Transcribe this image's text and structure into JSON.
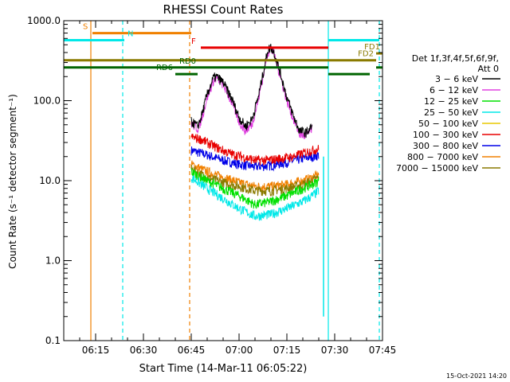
{
  "chart_data": {
    "type": "line",
    "title": "RHESSI Count Rates",
    "xlabel": "Start Time (14-Mar-11 06:05:22)",
    "ylabel": "Count Rate (s⁻¹ detector segment⁻¹)",
    "ylog": true,
    "ylim": [
      0.1,
      1000
    ],
    "xlim_minutes_after_0605": [
      0,
      100
    ],
    "x_tick_labels": [
      "06:15",
      "06:30",
      "06:45",
      "07:00",
      "07:15",
      "07:30",
      "07:45"
    ],
    "x_tick_minutes": [
      10,
      25,
      40,
      55,
      70,
      85,
      100
    ],
    "y_tick_labels": [
      "0.1",
      "1.0",
      "10.0",
      "100.0",
      "1000.0"
    ],
    "y_tick_values": [
      0.1,
      1,
      10,
      100,
      1000
    ],
    "timestamp": "15-Oct-2021 14:20",
    "legend": {
      "placement": "right",
      "header": [
        "Det 1f,3f,4f,5f,6f,9f,",
        "Att 0"
      ],
      "entries": [
        {
          "label": "3 − 6 keV",
          "color": "#000000"
        },
        {
          "label": "6 − 12 keV",
          "color": "#e040e0"
        },
        {
          "label": "12 − 25 keV",
          "color": "#00e000"
        },
        {
          "label": "25 − 50 keV",
          "color": "#00e8e8"
        },
        {
          "label": "50 − 100 keV",
          "color": "#e8c800"
        },
        {
          "label": "100 − 300 keV",
          "color": "#e80000"
        },
        {
          "label": "300 − 800 keV",
          "color": "#0000e8"
        },
        {
          "label": "800 − 7000 keV",
          "color": "#f08000"
        },
        {
          "label": "7000 − 15000 keV",
          "color": "#8a7a00"
        }
      ]
    },
    "time_series": [
      {
        "color": "#0000e8",
        "points": [
          [
            40,
            24
          ],
          [
            45,
            21
          ],
          [
            50,
            18
          ],
          [
            55,
            16
          ],
          [
            60,
            15
          ],
          [
            65,
            15.5
          ],
          [
            70,
            17
          ],
          [
            75,
            19
          ],
          [
            78,
            20
          ],
          [
            80,
            21
          ]
        ]
      },
      {
        "color": "#f08000",
        "points": [
          [
            40,
            16
          ],
          [
            45,
            13
          ],
          [
            50,
            11
          ],
          [
            55,
            9.5
          ],
          [
            60,
            8.5
          ],
          [
            65,
            8.5
          ],
          [
            70,
            9
          ],
          [
            75,
            10
          ],
          [
            78,
            11
          ],
          [
            80,
            12
          ]
        ]
      },
      {
        "color": "#8a7a00",
        "points": [
          [
            40,
            14
          ],
          [
            45,
            11
          ],
          [
            50,
            9.5
          ],
          [
            55,
            8.5
          ],
          [
            60,
            7.5
          ],
          [
            65,
            7.5
          ],
          [
            70,
            8
          ],
          [
            75,
            9
          ],
          [
            78,
            10
          ],
          [
            80,
            11
          ]
        ]
      },
      {
        "color": "#00e000",
        "points": [
          [
            40,
            13
          ],
          [
            45,
            10
          ],
          [
            50,
            8
          ],
          [
            55,
            6.5
          ],
          [
            60,
            5
          ],
          [
            65,
            5.5
          ],
          [
            70,
            6.5
          ],
          [
            75,
            8
          ],
          [
            78,
            9
          ],
          [
            80,
            10
          ]
        ]
      },
      {
        "color": "#00e8e8",
        "points": [
          [
            40,
            11
          ],
          [
            45,
            8
          ],
          [
            50,
            6
          ],
          [
            55,
            4.5
          ],
          [
            60,
            3.6
          ],
          [
            65,
            3.8
          ],
          [
            70,
            4.5
          ],
          [
            75,
            5.5
          ],
          [
            78,
            6.5
          ],
          [
            80,
            7.5
          ]
        ]
      },
      {
        "color": "#e80000",
        "points": [
          [
            40,
            35
          ],
          [
            43,
            33
          ],
          [
            48,
            26
          ],
          [
            52,
            22
          ],
          [
            56,
            20
          ],
          [
            60,
            18
          ],
          [
            64,
            18
          ],
          [
            68,
            19
          ],
          [
            72,
            20
          ],
          [
            75,
            22
          ],
          [
            78,
            24
          ],
          [
            80,
            25
          ]
        ]
      },
      {
        "color": "#e040e0",
        "points": [
          [
            40,
            52
          ],
          [
            42,
            45
          ],
          [
            43,
            55
          ],
          [
            45,
            110
          ],
          [
            47,
            180
          ],
          [
            48,
            190
          ],
          [
            50,
            160
          ],
          [
            53,
            90
          ],
          [
            55,
            55
          ],
          [
            57,
            42
          ],
          [
            59,
            50
          ],
          [
            61,
            100
          ],
          [
            63,
            250
          ],
          [
            64,
            400
          ],
          [
            65,
            450
          ],
          [
            66,
            380
          ],
          [
            68,
            200
          ],
          [
            70,
            100
          ],
          [
            72,
            60
          ],
          [
            74,
            38
          ],
          [
            76,
            36
          ],
          [
            78,
            45
          ]
        ]
      },
      {
        "color": "#000000",
        "points": [
          [
            40,
            55
          ],
          [
            42,
            48
          ],
          [
            43,
            60
          ],
          [
            45,
            120
          ],
          [
            47,
            195
          ],
          [
            48,
            200
          ],
          [
            50,
            170
          ],
          [
            53,
            100
          ],
          [
            55,
            62
          ],
          [
            57,
            48
          ],
          [
            59,
            58
          ],
          [
            61,
            110
          ],
          [
            63,
            270
          ],
          [
            64,
            430
          ],
          [
            65,
            470
          ],
          [
            66,
            400
          ],
          [
            68,
            220
          ],
          [
            70,
            110
          ],
          [
            72,
            65
          ],
          [
            74,
            42
          ],
          [
            76,
            40
          ],
          [
            78,
            48
          ]
        ]
      }
    ],
    "attenuator_drop": {
      "time": 81.5,
      "color": "#00e8e8",
      "from": 20,
      "to": 0.2
    },
    "annotation_bars": [
      {
        "label": "S",
        "color": "#f08000",
        "y": 700,
        "x0": 9,
        "x1": 40
      },
      {
        "label": "N",
        "color": "#00e8e8",
        "y": 570,
        "x0": 0,
        "x1": 19
      },
      {
        "label": "F",
        "color": "#e80000",
        "y": 460,
        "x0": 43,
        "x1": 83
      },
      {
        "label": "",
        "color": "#00e8e8",
        "y": 570,
        "x0": 83,
        "x1": 99
      },
      {
        "label": "FD1",
        "color": "#8a7a00",
        "y": 390,
        "x0": 98,
        "x1": 100
      },
      {
        "label": "FD2",
        "color": "#8a7a00",
        "y": 320,
        "x0": 0,
        "x1": 98
      },
      {
        "label": "RD0",
        "color": "#006400",
        "y": 260,
        "x0": 0,
        "x1": 83
      },
      {
        "label": "",
        "color": "#006400",
        "y": 260,
        "x0": 98,
        "x1": 100
      },
      {
        "label": "RD6",
        "color": "#006400",
        "y": 215,
        "x0": 35,
        "x1": 42
      },
      {
        "label": "",
        "color": "#006400",
        "y": 215,
        "x0": 83,
        "x1": 96
      }
    ],
    "vertical_markers": [
      {
        "time": 8.5,
        "color": "#f08000",
        "style": "solid"
      },
      {
        "time": 18.5,
        "color": "#00e8e8",
        "style": "dashed"
      },
      {
        "time": 39.5,
        "color": "#f08000",
        "style": "dashed"
      },
      {
        "time": 83,
        "color": "#00e8e8",
        "style": "solid"
      },
      {
        "time": 99,
        "color": "#00e8e8",
        "style": "dashed"
      }
    ]
  }
}
